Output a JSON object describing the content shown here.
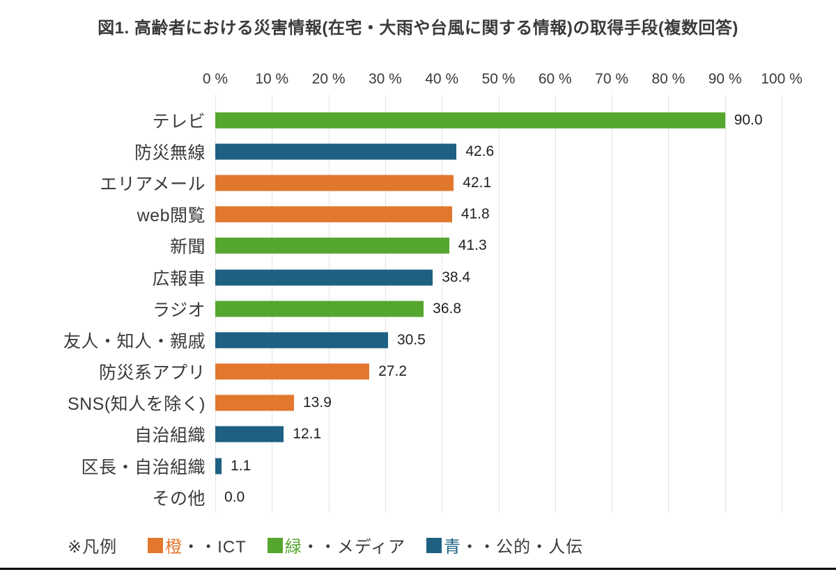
{
  "title": "図1. 高齢者における災害情報(在宅・大雨や台風に関する情報)の取得手段(複数回答)",
  "colors": {
    "orange": "#e2772e",
    "green": "#55a62e",
    "blue": "#1e6082",
    "grid": "#e2e2e2",
    "text": "#3a3a3a"
  },
  "x_axis": {
    "min": 0,
    "max": 100,
    "tick_step": 10,
    "ticks": [
      "0 %",
      "10 %",
      "20 %",
      "30 %",
      "40 %",
      "50 %",
      "60 %",
      "70 %",
      "80 %",
      "90 %",
      "100 %"
    ]
  },
  "rows": [
    {
      "label": "テレビ",
      "value": "90.0",
      "num": 90.0,
      "color": "green"
    },
    {
      "label": "防災無線",
      "value": "42.6",
      "num": 42.6,
      "color": "blue"
    },
    {
      "label": "エリアメール",
      "value": "42.1",
      "num": 42.1,
      "color": "orange"
    },
    {
      "label": "web閲覧",
      "value": "41.8",
      "num": 41.8,
      "color": "orange"
    },
    {
      "label": "新聞",
      "value": "41.3",
      "num": 41.3,
      "color": "green"
    },
    {
      "label": "広報車",
      "value": "38.4",
      "num": 38.4,
      "color": "blue"
    },
    {
      "label": "ラジオ",
      "value": "36.8",
      "num": 36.8,
      "color": "green"
    },
    {
      "label": "友人・知人・親戚",
      "value": "30.5",
      "num": 30.5,
      "color": "blue"
    },
    {
      "label": "防災系アプリ",
      "value": "27.2",
      "num": 27.2,
      "color": "orange"
    },
    {
      "label": "SNS(知人を除く)",
      "value": "13.9",
      "num": 13.9,
      "color": "orange"
    },
    {
      "label": "自治組織",
      "value": "12.1",
      "num": 12.1,
      "color": "blue"
    },
    {
      "label": "区長・自治組織",
      "value": "1.1",
      "num": 1.1,
      "color": "blue"
    },
    {
      "label": "その他",
      "value": "0.0",
      "num": 0.0,
      "color": "none"
    }
  ],
  "legend": {
    "note": "※凡例",
    "items": [
      {
        "color": "orange",
        "term": "橙",
        "rest": "・・ICT"
      },
      {
        "color": "green",
        "term": "緑",
        "rest": "・・メディア"
      },
      {
        "color": "blue",
        "term": "青",
        "rest": "・・公的・人伝"
      }
    ]
  },
  "chart_data": {
    "type": "bar",
    "orientation": "horizontal",
    "title": "図1. 高齢者における災害情報(在宅・大雨や台風に関する情報)の取得手段(複数回答)",
    "categories": [
      "テレビ",
      "防災無線",
      "エリアメール",
      "web閲覧",
      "新聞",
      "広報車",
      "ラジオ",
      "友人・知人・親戚",
      "防災系アプリ",
      "SNS(知人を除く)",
      "自治組織",
      "区長・自治組織",
      "その他"
    ],
    "values": [
      90.0,
      42.6,
      42.1,
      41.8,
      41.3,
      38.4,
      36.8,
      30.5,
      27.2,
      13.9,
      12.1,
      1.1,
      0.0
    ],
    "bar_color_groups": [
      "green",
      "blue",
      "orange",
      "orange",
      "green",
      "blue",
      "green",
      "blue",
      "orange",
      "orange",
      "blue",
      "blue",
      "none"
    ],
    "group_meanings": {
      "orange": "ICT",
      "green": "メディア",
      "blue": "公的・人伝"
    },
    "xlabel": "",
    "ylabel": "",
    "xlim": [
      0,
      100
    ],
    "x_tick_labels": [
      "0 %",
      "10 %",
      "20 %",
      "30 %",
      "40 %",
      "50 %",
      "60 %",
      "70 %",
      "80 %",
      "90 %",
      "100 %"
    ],
    "grid": "vertical",
    "value_labels_shown": true,
    "legend_position": "bottom"
  }
}
